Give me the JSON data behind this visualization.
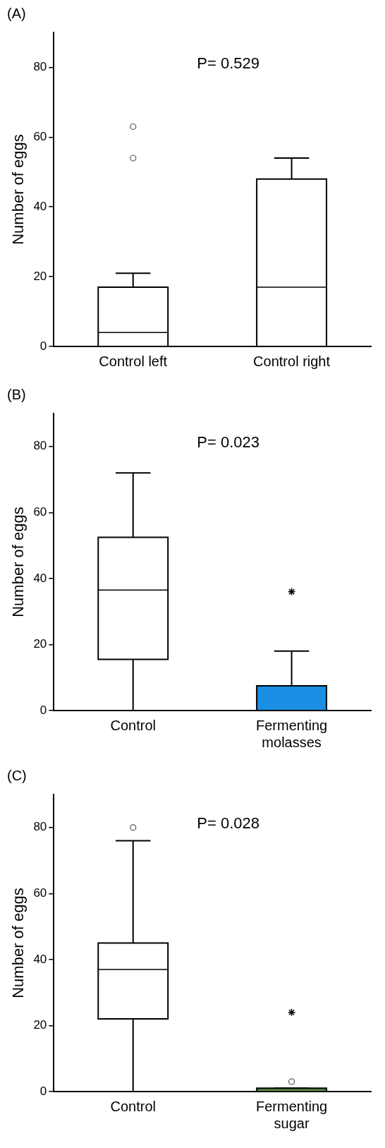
{
  "chart_data": [
    {
      "type": "box",
      "title": "(A)",
      "ylabel": "Number of eggs",
      "categories": [
        "Control left",
        "Control right"
      ],
      "ylim": [
        0,
        90
      ],
      "yticks": [
        0,
        20,
        40,
        60,
        80
      ],
      "grid": false,
      "legend": false,
      "annotations": [
        "P= 0.529"
      ],
      "series": [
        {
          "colors": [
            "#ffffff",
            "#ffffff"
          ],
          "boxes": [
            {
              "q1": 0,
              "median": 4,
              "q3": 17,
              "high": 21,
              "outliers": [
                54,
                63
              ]
            },
            {
              "q1": 0,
              "median": 17,
              "q3": 48,
              "high": 54
            }
          ]
        }
      ]
    },
    {
      "type": "box",
      "title": "(B)",
      "ylabel": "Number of eggs",
      "categories": [
        "Control",
        "Fermenting molasses"
      ],
      "ylim": [
        0,
        90
      ],
      "yticks": [
        0,
        20,
        40,
        60,
        80
      ],
      "grid": false,
      "legend": false,
      "annotations": [
        "P= 0.023"
      ],
      "series": [
        {
          "colors": [
            "#ffffff",
            "#1a8fe3"
          ],
          "boxes": [
            {
              "low": 0,
              "q1": 15.5,
              "median": 36.5,
              "q3": 52.5,
              "high": 72
            },
            {
              "q1": 0,
              "median": 0,
              "q3": 7.5,
              "high": 18
            }
          ]
        },
        {
          "type": "scatter",
          "marker": "cross",
          "color": "#000000",
          "x": [
            "Fermenting molasses"
          ],
          "values": [
            36
          ]
        }
      ]
    },
    {
      "type": "box",
      "title": "(C)",
      "ylabel": "Number of eggs",
      "categories": [
        "Control",
        "Fermenting sugar"
      ],
      "ylim": [
        0,
        90
      ],
      "yticks": [
        0,
        20,
        40,
        60,
        80
      ],
      "grid": false,
      "legend": false,
      "annotations": [
        "P= 0.028"
      ],
      "series": [
        {
          "colors": [
            "#ffffff",
            "#5a8a3a"
          ],
          "boxes": [
            {
              "low": 0,
              "q1": 22,
              "median": 37,
              "q3": 45,
              "high": 76,
              "outliers": [
                80
              ]
            },
            {
              "q1": 0,
              "median": 0,
              "q3": 1,
              "high": 1,
              "outliers": [
                3
              ]
            }
          ]
        },
        {
          "type": "scatter",
          "marker": "cross",
          "color": "#000000",
          "x": [
            "Fermenting sugar"
          ],
          "values": [
            24
          ]
        }
      ]
    }
  ]
}
